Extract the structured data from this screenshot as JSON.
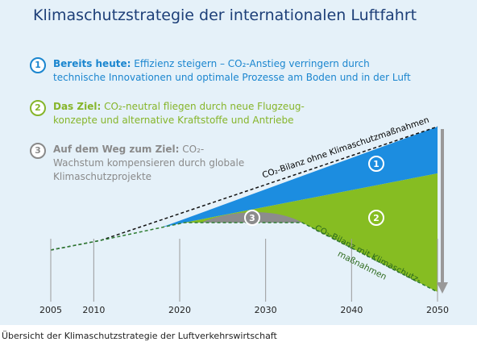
{
  "title": "Klimaschutzstrategie der internationalen Luftfahrt",
  "steps": [
    {
      "number": "1",
      "label": "Bereits heute:",
      "text": "Effizienz steigern – CO₂-Anstieg verringern durch technische Innovationen und optimale Prozesse am Boden und in der Luft"
    },
    {
      "number": "2",
      "label": "Das Ziel:",
      "text": "CO₂-neutral fliegen durch neue Flugzeug-konzepte und alternative Kraftstoffe und Antriebe"
    },
    {
      "number": "3",
      "label": "Auf dem Weg zum Ziel:",
      "text": "CO₂-Wachstum kompensieren durch globale Klimaschutzprojekte"
    }
  ],
  "chart_data": {
    "type": "area",
    "xlim": [
      2005,
      2050
    ],
    "xticks": [
      2005,
      2010,
      2020,
      2030,
      2040,
      2050
    ],
    "upper_annotation": "CO₂-Bilanz ohne Klimaschutzmaßnahmen",
    "lower_annotation": [
      "CO₂-Bilanz mit Klimaschutz-",
      "maßnahmen"
    ],
    "region_labels": [
      "1",
      "2",
      "3"
    ]
  },
  "caption": "Übersicht der Klimaschutzstrategie der Luftverkehrswirtschaft"
}
